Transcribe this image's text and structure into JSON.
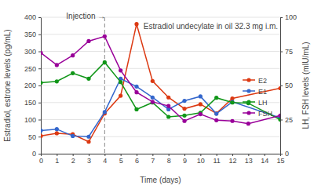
{
  "chart_data": {
    "type": "line",
    "x_label": "Time (days)",
    "y_label": "Estradiol, estrone levels (pg/mL)",
    "y2_label": "LH, FSH levels (mIU/mL)",
    "xlim": [
      0,
      15
    ],
    "xticks": [
      0,
      1,
      2,
      3,
      4,
      5,
      6,
      7,
      8,
      9,
      10,
      11,
      12,
      13,
      14,
      15
    ],
    "ylim": [
      0,
      400
    ],
    "yticks": [
      0,
      50,
      100,
      150,
      200,
      250,
      300,
      350,
      400
    ],
    "y2lim": [
      0,
      100
    ],
    "y2ticks": [
      0,
      25,
      50,
      75,
      100
    ],
    "grid": true,
    "legend": "right",
    "annotations": [
      {
        "text": "Injection →",
        "x": 4
      },
      {
        "text": "Estradiol undecylate in oil 32.3 mg i.m."
      }
    ],
    "series": [
      {
        "name": "E2",
        "color": "#dc3912",
        "marker": "circle",
        "line_style": "solid",
        "x": [
          0,
          1,
          2,
          3,
          4,
          5,
          6,
          7,
          8,
          9,
          10,
          11,
          12,
          15
        ],
        "values": [
          52,
          60,
          57,
          35,
          118,
          170,
          380,
          213,
          165,
          132,
          145,
          118,
          162,
          192
        ]
      },
      {
        "name": "E1",
        "color": "#3366cc",
        "marker": "circle",
        "line_style": "solid",
        "x": [
          0,
          1,
          2,
          3,
          4,
          5,
          6,
          7,
          8,
          9,
          10,
          11,
          12,
          15
        ],
        "values": [
          68,
          72,
          52,
          50,
          122,
          220,
          197,
          165,
          130,
          155,
          168,
          117,
          152,
          105
        ]
      },
      {
        "name": "LH",
        "color": "#109618",
        "marker": "circle",
        "line_style": "solid",
        "axis": "y2",
        "x": [
          0,
          1,
          2,
          3,
          4,
          5,
          6,
          7,
          8,
          9,
          10,
          11,
          12,
          13,
          15
        ],
        "values": [
          52,
          53,
          59,
          55,
          67,
          52.5,
          32.5,
          37.5,
          27,
          28,
          30,
          41,
          37.5,
          37,
          25
        ]
      },
      {
        "name": "FSH",
        "color": "#990099",
        "marker": "circle",
        "line_style": "solid",
        "axis": "y2",
        "x": [
          0,
          1,
          2,
          3,
          4,
          5,
          6,
          7,
          8,
          9,
          10,
          11,
          12,
          13,
          15
        ],
        "values": [
          74,
          65,
          72,
          82.5,
          86,
          61,
          45,
          38,
          35,
          24,
          29,
          24.5,
          24,
          22,
          28
        ]
      }
    ]
  }
}
